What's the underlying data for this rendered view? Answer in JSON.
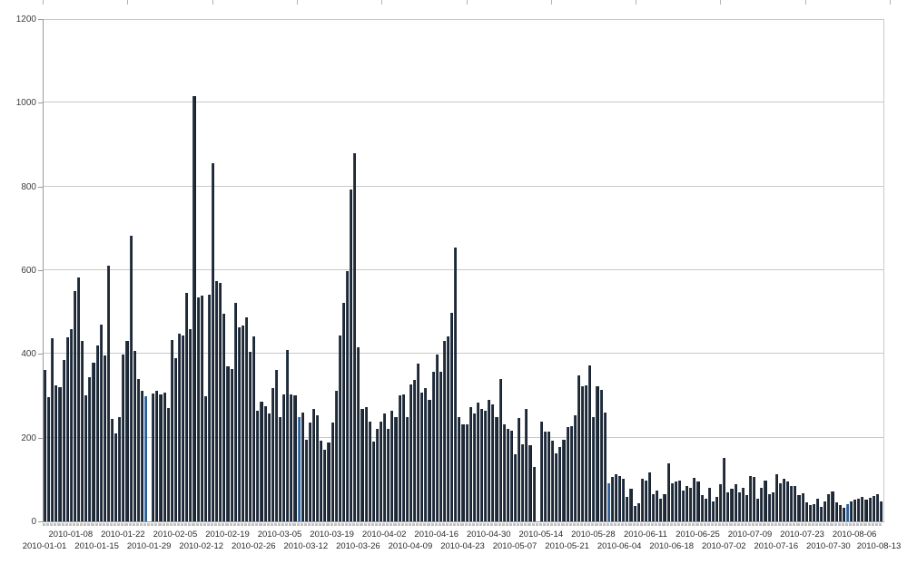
{
  "chart_data": {
    "type": "bar",
    "title": "",
    "xlabel": "",
    "ylabel": "",
    "ylim": [
      0,
      1200
    ],
    "y_ticks": [
      0,
      200,
      400,
      600,
      800,
      1000,
      1200
    ],
    "grid": true,
    "legend": "none",
    "x_start_date": "2010-01-01",
    "x_end_date": "2010-08-13",
    "bar_color": "#1e2935",
    "highlight_color": "#2e5f94",
    "highlighted_indices": [
      27,
      68,
      151,
      215
    ],
    "x_axis_labels_upper_row": {
      "labels": [
        "2010-01-08",
        "2010-01-22",
        "2010-02-05",
        "2010-02-19",
        "2010-03-05",
        "2010-03-19",
        "2010-04-02",
        "2010-04-16",
        "2010-04-30",
        "2010-05-14",
        "2010-05-28",
        "2010-06-11",
        "2010-06-25",
        "2010-07-09",
        "2010-07-23",
        "2010-08-06"
      ],
      "bar_indices": [
        7,
        21,
        35,
        49,
        63,
        77,
        91,
        105,
        119,
        133,
        147,
        161,
        175,
        189,
        203,
        217
      ]
    },
    "x_axis_labels_lower_row": {
      "labels": [
        "2010-01-01",
        "2010-01-15",
        "2010-01-29",
        "2010-02-12",
        "2010-02-26",
        "2010-03-12",
        "2010-03-26",
        "2010-04-09",
        "2010-04-23",
        "2010-05-07",
        "2010-05-21",
        "2010-06-04",
        "2010-06-18",
        "2010-07-02",
        "2010-07-16",
        "2010-07-30",
        "2010-08-13"
      ],
      "bar_indices": [
        0,
        14,
        28,
        42,
        56,
        70,
        84,
        98,
        112,
        126,
        140,
        154,
        168,
        182,
        196,
        210,
        224
      ]
    },
    "values": [
      362,
      297,
      438,
      324,
      320,
      385,
      440,
      460,
      551,
      583,
      430,
      301,
      345,
      380,
      420,
      469,
      397,
      611,
      245,
      211,
      250,
      398,
      430,
      683,
      407,
      340,
      312,
      300,
      0,
      305,
      311,
      304,
      308,
      270,
      434,
      390,
      449,
      445,
      545,
      460,
      1015,
      535,
      540,
      300,
      542,
      855,
      575,
      570,
      496,
      370,
      365,
      522,
      463,
      467,
      488,
      405,
      441,
      264,
      286,
      275,
      257,
      319,
      362,
      250,
      304,
      409,
      304,
      301,
      250,
      261,
      196,
      236,
      268,
      254,
      192,
      171,
      189,
      236,
      311,
      445,
      521,
      598,
      793,
      880,
      416,
      268,
      272,
      239,
      191,
      220,
      239,
      257,
      220,
      264,
      249,
      302,
      304,
      250,
      328,
      337,
      376,
      308,
      319,
      290,
      358,
      399,
      358,
      432,
      441,
      498,
      655,
      250,
      232,
      232,
      272,
      257,
      283,
      268,
      265,
      290,
      279,
      250,
      340,
      232,
      221,
      217,
      160,
      246,
      185,
      268,
      181,
      131,
      0,
      239,
      214,
      215,
      192,
      163,
      178,
      196,
      225,
      228,
      254,
      348,
      322,
      326,
      373,
      250,
      322,
      315,
      261,
      90,
      106,
      113,
      109,
      102,
      59,
      77,
      37,
      44,
      102,
      98,
      116,
      66,
      73,
      55,
      66,
      138,
      91,
      95,
      98,
      73,
      84,
      80,
      104,
      95,
      62,
      55,
      80,
      48,
      59,
      89,
      152,
      70,
      77,
      88,
      70,
      80,
      62,
      109,
      106,
      55,
      80,
      98,
      66,
      70,
      113,
      91,
      102,
      95,
      84,
      84,
      62,
      68,
      45,
      40,
      42,
      55,
      35,
      48,
      65,
      72,
      45,
      40,
      32,
      42,
      48,
      52,
      55,
      58,
      52,
      56,
      60,
      64,
      48
    ]
  }
}
